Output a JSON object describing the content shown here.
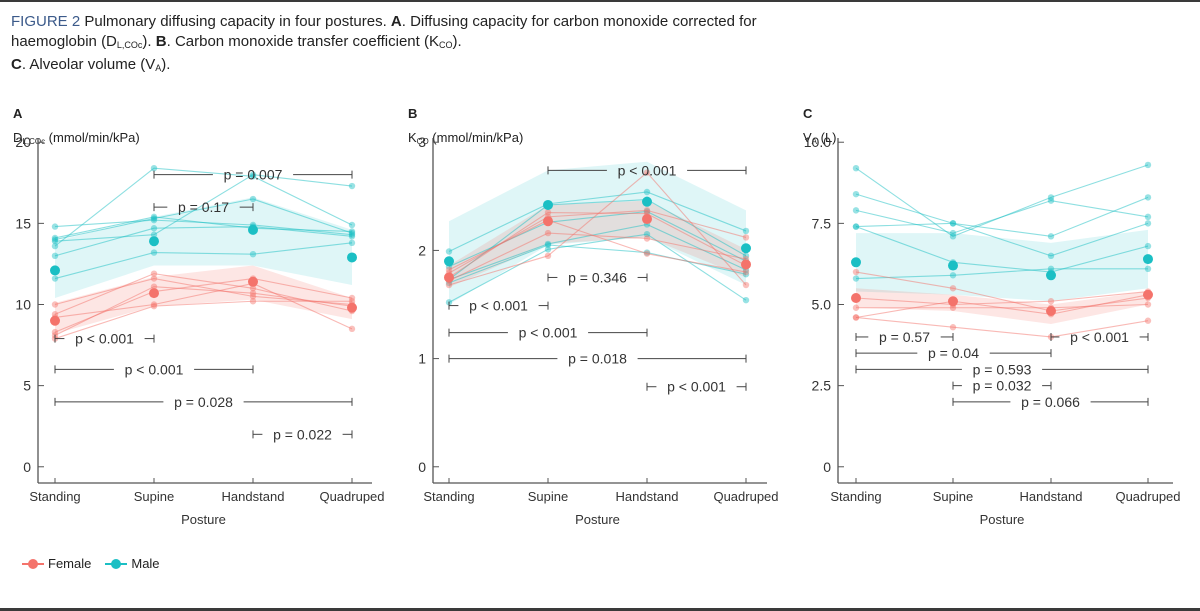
{
  "caption": {
    "figure_label": "FIGURE 2",
    "line1_rest": " Pulmonary diffusing capacity in four postures. ",
    "a_letter": "A",
    "a_text_1": ". Diffusing capacity for carbon monoxide corrected for haemoglobin (D",
    "a_sub": "L,COc",
    "a_text_2": "). ",
    "b_letter": "B",
    "b_text_1": ". Carbon monoxide transfer coefficient (K",
    "b_sub": "CO",
    "b_text_2": "). ",
    "c_letter": "C",
    "c_text_1": ". Alveolar volume (V",
    "c_sub": "A",
    "c_text_2": ")."
  },
  "colors": {
    "female": "#f4736b",
    "male": "#1bbfc4",
    "axis": "#555555",
    "bracket": "#444444"
  },
  "legend": {
    "items": [
      {
        "label": "Female",
        "color": "#f4736b"
      },
      {
        "label": "Male",
        "color": "#1bbfc4"
      }
    ]
  },
  "chart_data": [
    {
      "panel": "A",
      "type": "line",
      "ylabel_main": "D",
      "ylabel_sub": "L,COc",
      "ylabel_unit": " (mmol/min/kPa)",
      "xlabel": "Posture",
      "categories": [
        "Standing",
        "Supine",
        "Handstand",
        "Quadruped"
      ],
      "ylim": [
        -1,
        21
      ],
      "yticks": [
        0,
        5,
        10,
        15,
        20
      ],
      "ytick_labels": [
        "0",
        "5",
        "10",
        "15",
        "20"
      ],
      "series": [
        {
          "name": "Male",
          "mean": [
            12.1,
            13.9,
            14.6,
            12.9
          ],
          "ci_low": [
            10.4,
            12.4,
            12.4,
            11.2
          ],
          "ci_high": [
            13.9,
            15.4,
            16.6,
            14.6
          ],
          "subjects": [
            [
              14.8,
              15.2,
              14.9,
              14.3
            ],
            [
              14.1,
              15.4,
              14.7,
              14.5
            ],
            [
              13.9,
              14.3,
              18.0,
              17.3
            ],
            [
              13.6,
              18.4,
              17.9,
              14.9
            ],
            [
              13.0,
              14.7,
              14.8,
              14.2
            ],
            [
              11.6,
              13.2,
              13.1,
              13.8
            ],
            [
              14.0,
              15.3,
              16.5,
              14.4
            ]
          ]
        },
        {
          "name": "Female",
          "mean": [
            9.0,
            10.7,
            11.4,
            9.8
          ],
          "ci_low": [
            8.2,
            9.9,
            10.3,
            9.1
          ],
          "ci_high": [
            10.1,
            11.7,
            12.4,
            10.4
          ],
          "subjects": [
            [
              10.0,
              11.6,
              10.5,
              10.0
            ],
            [
              9.4,
              11.9,
              11.0,
              9.6
            ],
            [
              8.3,
              10.8,
              11.6,
              10.4
            ],
            [
              7.9,
              9.9,
              10.2,
              10.2
            ],
            [
              9.2,
              10.0,
              11.3,
              8.5
            ],
            [
              8.1,
              11.1,
              10.7,
              9.9
            ]
          ]
        }
      ],
      "annotations": [
        {
          "text": "p = 0.007",
          "from": "Supine",
          "to": "Quadruped",
          "y": 18.0
        },
        {
          "text": "p = 0.17",
          "from": "Supine",
          "to": "Handstand",
          "y": 16.0
        },
        {
          "text": "p < 0.001",
          "from": "Standing",
          "to": "Supine",
          "y": 7.9
        },
        {
          "text": "p < 0.001",
          "from": "Standing",
          "to": "Handstand",
          "y": 6.0
        },
        {
          "text": "p = 0.028",
          "from": "Standing",
          "to": "Quadruped",
          "y": 4.0
        },
        {
          "text": "p = 0.022",
          "from": "Handstand",
          "to": "Quadruped",
          "y": 2.0
        }
      ]
    },
    {
      "panel": "B",
      "type": "line",
      "ylabel_main": "K",
      "ylabel_sub": "CO",
      "ylabel_unit": " (mmol/min/kPa)",
      "xlabel": "Posture",
      "categories": [
        "Standing",
        "Supine",
        "Handstand",
        "Quadruped"
      ],
      "ylim": [
        -0.15,
        3.15
      ],
      "yticks": [
        0,
        1,
        2,
        3
      ],
      "ytick_labels": [
        "0",
        "1",
        "2",
        "3"
      ],
      "series": [
        {
          "name": "Male",
          "mean": [
            1.9,
            2.42,
            2.45,
            2.02
          ],
          "ci_low": [
            1.5,
            2.05,
            2.12,
            1.68
          ],
          "ci_high": [
            2.27,
            2.74,
            2.82,
            2.37
          ],
          "subjects": [
            [
              1.99,
              2.43,
              2.54,
              2.18
            ],
            [
              1.73,
              2.06,
              2.24,
              1.82
            ],
            [
              1.52,
              2.01,
              2.15,
              1.54
            ],
            [
              1.73,
              2.42,
              2.47,
              1.95
            ],
            [
              1.85,
              2.26,
              2.36,
              1.9
            ],
            [
              1.7,
              2.05,
              1.98,
              1.78
            ]
          ]
        },
        {
          "name": "Female",
          "mean": [
            1.75,
            2.27,
            2.29,
            1.87
          ],
          "ci_low": [
            1.66,
            2.06,
            2.12,
            1.75
          ],
          "ci_high": [
            1.86,
            2.42,
            2.46,
            2.01
          ],
          "subjects": [
            [
              1.79,
              2.31,
              2.37,
              2.12
            ],
            [
              1.68,
              1.95,
              2.72,
              1.68
            ],
            [
              1.72,
              2.16,
              2.11,
              1.92
            ],
            [
              1.82,
              2.28,
              1.97,
              1.8
            ],
            [
              1.75,
              2.35,
              2.34,
              1.86
            ]
          ]
        }
      ],
      "annotations": [
        {
          "text": "p < 0.001",
          "from": "Supine",
          "to": "Quadruped",
          "y": 2.74
        },
        {
          "text": "p = 0.346",
          "from": "Supine",
          "to": "Handstand",
          "y": 1.75
        },
        {
          "text": "p < 0.001",
          "from": "Standing",
          "to": "Supine",
          "y": 1.49
        },
        {
          "text": "p < 0.001",
          "from": "Standing",
          "to": "Handstand",
          "y": 1.24
        },
        {
          "text": "p = 0.018",
          "from": "Standing",
          "to": "Quadruped",
          "y": 1.0
        },
        {
          "text": "p < 0.001",
          "from": "Handstand",
          "to": "Quadruped",
          "y": 0.74
        }
      ]
    },
    {
      "panel": "C",
      "type": "line",
      "ylabel_main": "V",
      "ylabel_sub": "A",
      "ylabel_unit": " (L)",
      "xlabel": "Posture",
      "categories": [
        "Standing",
        "Supine",
        "Handstand",
        "Quadruped"
      ],
      "ylim": [
        -0.5,
        10.5
      ],
      "yticks": [
        0,
        2.5,
        5.0,
        7.5,
        10.0
      ],
      "ytick_labels": [
        "0",
        "2.5",
        "5.0",
        "7.5",
        "10.0"
      ],
      "series": [
        {
          "name": "Male",
          "mean": [
            6.3,
            6.2,
            5.9,
            6.4
          ],
          "ci_low": [
            5.4,
            5.3,
            5.1,
            5.5
          ],
          "ci_high": [
            7.2,
            7.2,
            6.9,
            7.3
          ],
          "subjects": [
            [
              9.2,
              7.1,
              8.3,
              9.3
            ],
            [
              8.4,
              7.5,
              7.1,
              8.3
            ],
            [
              7.9,
              7.2,
              8.2,
              7.7
            ],
            [
              7.4,
              7.5,
              6.5,
              7.5
            ],
            [
              7.4,
              6.3,
              6.0,
              6.8
            ],
            [
              5.8,
              5.9,
              6.1,
              6.1
            ]
          ]
        },
        {
          "name": "Female",
          "mean": [
            5.2,
            5.1,
            4.8,
            5.3
          ],
          "ci_low": [
            4.9,
            4.8,
            4.4,
            5.0
          ],
          "ci_high": [
            5.5,
            5.3,
            5.0,
            5.4
          ],
          "subjects": [
            [
              6.0,
              5.5,
              4.8,
              5.2
            ],
            [
              5.2,
              5.0,
              5.1,
              5.4
            ],
            [
              4.9,
              4.9,
              4.9,
              5.0
            ],
            [
              4.6,
              5.1,
              4.7,
              5.3
            ],
            [
              4.6,
              4.3,
              4.0,
              4.5
            ]
          ]
        }
      ],
      "annotations": [
        {
          "text": "p = 0.57",
          "from": "Standing",
          "to": "Supine",
          "y": 4.0
        },
        {
          "text": "p < 0.001",
          "from": "Handstand",
          "to": "Quadruped",
          "y": 4.0
        },
        {
          "text": "p = 0.04",
          "from": "Standing",
          "to": "Handstand",
          "y": 3.5
        },
        {
          "text": "p = 0.593",
          "from": "Standing",
          "to": "Quadruped",
          "y": 3.0
        },
        {
          "text": "p = 0.032",
          "from": "Supine",
          "to": "Handstand",
          "y": 2.5
        },
        {
          "text": "p = 0.066",
          "from": "Supine",
          "to": "Quadruped",
          "y": 2.0
        }
      ]
    }
  ]
}
